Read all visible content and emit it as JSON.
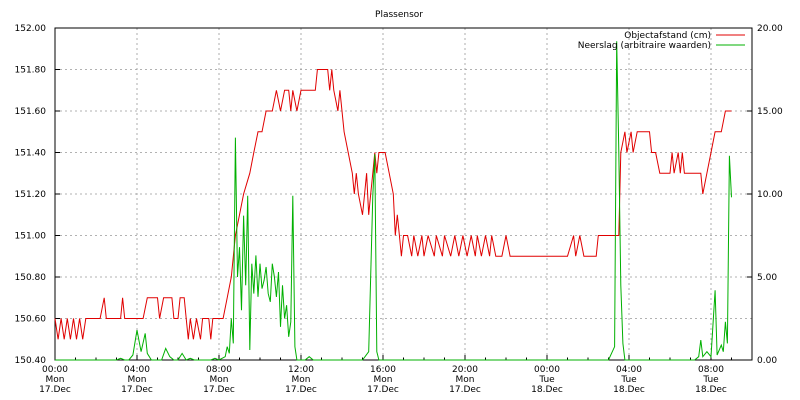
{
  "chart_data": {
    "type": "line",
    "title": "Plassensor",
    "xlabel": "",
    "ylabel": "",
    "x_unit": "hours since 17 Dec 00:00",
    "xlim": [
      0,
      34
    ],
    "ylim": [
      150.4,
      152.0
    ],
    "y2lim": [
      0,
      20
    ],
    "grid": true,
    "legend_placement": "top-right",
    "x_ticks": [
      {
        "x": 0,
        "l1": "00:00",
        "l2": "Mon",
        "l3": "17.Dec"
      },
      {
        "x": 4,
        "l1": "04:00",
        "l2": "Mon",
        "l3": "17.Dec"
      },
      {
        "x": 8,
        "l1": "08:00",
        "l2": "Mon",
        "l3": "17.Dec"
      },
      {
        "x": 12,
        "l1": "12:00",
        "l2": "Mon",
        "l3": "17.Dec"
      },
      {
        "x": 16,
        "l1": "16:00",
        "l2": "Mon",
        "l3": "17.Dec"
      },
      {
        "x": 20,
        "l1": "20:00",
        "l2": "Mon",
        "l3": "17.Dec"
      },
      {
        "x": 24,
        "l1": "00:00",
        "l2": "Tue",
        "l3": "18.Dec"
      },
      {
        "x": 28,
        "l1": "04:00",
        "l2": "Tue",
        "l3": "18.Dec"
      },
      {
        "x": 32,
        "l1": "08:00",
        "l2": "Tue",
        "l3": "18.Dec"
      }
    ],
    "y_ticks": [
      "150.40",
      "150.60",
      "150.80",
      "151.00",
      "151.20",
      "151.40",
      "151.60",
      "151.80",
      "152.00"
    ],
    "y2_ticks": [
      "0.00",
      "5.00",
      "10.00",
      "15.00",
      "20.00"
    ],
    "series": [
      {
        "name": "Objectafstand (cm)",
        "color": "#e00000",
        "axis": "left",
        "points": [
          [
            0,
            150.6
          ],
          [
            0.15,
            150.5
          ],
          [
            0.3,
            150.6
          ],
          [
            0.45,
            150.5
          ],
          [
            0.6,
            150.6
          ],
          [
            0.75,
            150.5
          ],
          [
            0.9,
            150.6
          ],
          [
            1.05,
            150.5
          ],
          [
            1.2,
            150.6
          ],
          [
            1.35,
            150.5
          ],
          [
            1.5,
            150.6
          ],
          [
            2.2,
            150.6
          ],
          [
            2.4,
            150.7
          ],
          [
            2.5,
            150.6
          ],
          [
            3.2,
            150.6
          ],
          [
            3.3,
            150.7
          ],
          [
            3.4,
            150.6
          ],
          [
            3.8,
            150.6
          ],
          [
            4.0,
            150.6
          ],
          [
            4.3,
            150.6
          ],
          [
            4.5,
            150.7
          ],
          [
            5.0,
            150.7
          ],
          [
            5.1,
            150.6
          ],
          [
            5.3,
            150.7
          ],
          [
            5.7,
            150.7
          ],
          [
            5.8,
            150.6
          ],
          [
            6.0,
            150.6
          ],
          [
            6.1,
            150.7
          ],
          [
            6.3,
            150.7
          ],
          [
            6.4,
            150.6
          ],
          [
            6.5,
            150.5
          ],
          [
            6.6,
            150.6
          ],
          [
            6.75,
            150.5
          ],
          [
            6.9,
            150.6
          ],
          [
            7.1,
            150.5
          ],
          [
            7.2,
            150.6
          ],
          [
            7.5,
            150.6
          ],
          [
            7.6,
            150.5
          ],
          [
            7.7,
            150.6
          ],
          [
            8.2,
            150.6
          ],
          [
            8.4,
            150.7
          ],
          [
            8.6,
            150.8
          ],
          [
            8.8,
            151.0
          ],
          [
            9.0,
            151.1
          ],
          [
            9.2,
            151.2
          ],
          [
            9.5,
            151.3
          ],
          [
            9.7,
            151.4
          ],
          [
            9.9,
            151.5
          ],
          [
            10.1,
            151.5
          ],
          [
            10.3,
            151.6
          ],
          [
            10.6,
            151.6
          ],
          [
            10.8,
            151.7
          ],
          [
            11.0,
            151.6
          ],
          [
            11.2,
            151.7
          ],
          [
            11.4,
            151.7
          ],
          [
            11.5,
            151.6
          ],
          [
            11.6,
            151.7
          ],
          [
            11.8,
            151.6
          ],
          [
            12.0,
            151.7
          ],
          [
            12.2,
            151.7
          ],
          [
            12.4,
            151.7
          ],
          [
            12.7,
            151.7
          ],
          [
            12.8,
            151.8
          ],
          [
            13.3,
            151.8
          ],
          [
            13.4,
            151.7
          ],
          [
            13.5,
            151.8
          ],
          [
            13.6,
            151.7
          ],
          [
            13.8,
            151.6
          ],
          [
            13.9,
            151.7
          ],
          [
            14.1,
            151.5
          ],
          [
            14.3,
            151.4
          ],
          [
            14.5,
            151.3
          ],
          [
            14.6,
            151.2
          ],
          [
            14.7,
            151.3
          ],
          [
            14.8,
            151.2
          ],
          [
            15.0,
            151.1
          ],
          [
            15.1,
            151.2
          ],
          [
            15.2,
            151.3
          ],
          [
            15.3,
            151.1
          ],
          [
            15.4,
            151.2
          ],
          [
            15.5,
            151.3
          ],
          [
            15.6,
            151.4
          ],
          [
            15.7,
            151.3
          ],
          [
            15.8,
            151.4
          ],
          [
            16.1,
            151.4
          ],
          [
            16.3,
            151.3
          ],
          [
            16.5,
            151.2
          ],
          [
            16.6,
            151.0
          ],
          [
            16.7,
            151.1
          ],
          [
            16.8,
            151.0
          ],
          [
            16.9,
            150.9
          ],
          [
            17.0,
            151.0
          ],
          [
            17.2,
            151.0
          ],
          [
            17.4,
            150.9
          ],
          [
            17.5,
            151.0
          ],
          [
            17.7,
            150.9
          ],
          [
            17.9,
            151.0
          ],
          [
            18.0,
            150.9
          ],
          [
            18.2,
            151.0
          ],
          [
            18.5,
            150.9
          ],
          [
            18.6,
            151.0
          ],
          [
            18.9,
            150.9
          ],
          [
            19.0,
            151.0
          ],
          [
            19.3,
            150.9
          ],
          [
            19.5,
            151.0
          ],
          [
            19.7,
            150.9
          ],
          [
            19.9,
            151.0
          ],
          [
            20.1,
            150.9
          ],
          [
            20.3,
            151.0
          ],
          [
            20.5,
            150.9
          ],
          [
            20.6,
            151.0
          ],
          [
            20.8,
            150.9
          ],
          [
            21.0,
            151.0
          ],
          [
            21.2,
            150.9
          ],
          [
            21.3,
            151.0
          ],
          [
            21.5,
            150.9
          ],
          [
            21.8,
            150.9
          ],
          [
            22.0,
            151.0
          ],
          [
            22.2,
            150.9
          ],
          [
            22.4,
            150.9
          ],
          [
            23.0,
            150.9
          ],
          [
            23.7,
            150.9
          ],
          [
            24.3,
            150.9
          ],
          [
            25.0,
            150.9
          ],
          [
            25.3,
            151.0
          ],
          [
            25.4,
            150.9
          ],
          [
            25.6,
            151.0
          ],
          [
            25.8,
            150.9
          ],
          [
            26.4,
            150.9
          ],
          [
            26.5,
            151.0
          ],
          [
            27.5,
            151.0
          ],
          [
            27.6,
            151.4
          ],
          [
            27.8,
            151.5
          ],
          [
            27.9,
            151.4
          ],
          [
            28.1,
            151.5
          ],
          [
            28.2,
            151.4
          ],
          [
            28.4,
            151.5
          ],
          [
            29.0,
            151.5
          ],
          [
            29.1,
            151.4
          ],
          [
            29.3,
            151.4
          ],
          [
            29.5,
            151.3
          ],
          [
            30.0,
            151.3
          ],
          [
            30.1,
            151.4
          ],
          [
            30.2,
            151.3
          ],
          [
            30.4,
            151.4
          ],
          [
            30.5,
            151.3
          ],
          [
            30.6,
            151.4
          ],
          [
            30.7,
            151.3
          ],
          [
            31.0,
            151.3
          ],
          [
            31.5,
            151.3
          ],
          [
            31.6,
            151.2
          ],
          [
            31.8,
            151.3
          ],
          [
            32.0,
            151.4
          ],
          [
            32.2,
            151.5
          ],
          [
            32.5,
            151.5
          ],
          [
            32.7,
            151.6
          ],
          [
            33.0,
            151.6
          ]
        ]
      },
      {
        "name": "Neerslag (arbitraire waarden)",
        "color": "#00b000",
        "axis": "right",
        "points": [
          [
            0,
            0
          ],
          [
            3.0,
            0
          ],
          [
            3.2,
            0.1
          ],
          [
            3.4,
            0
          ],
          [
            3.6,
            0
          ],
          [
            3.8,
            0.3
          ],
          [
            4.0,
            1.8
          ],
          [
            4.2,
            0.5
          ],
          [
            4.4,
            1.6
          ],
          [
            4.5,
            0.4
          ],
          [
            4.7,
            0
          ],
          [
            5.2,
            0
          ],
          [
            5.4,
            0.7
          ],
          [
            5.6,
            0.2
          ],
          [
            5.8,
            0
          ],
          [
            6.0,
            0
          ],
          [
            6.2,
            0.4
          ],
          [
            6.4,
            0
          ],
          [
            6.6,
            0.1
          ],
          [
            6.8,
            0
          ],
          [
            7.6,
            0
          ],
          [
            7.8,
            0.1
          ],
          [
            8.0,
            0
          ],
          [
            8.3,
            0.2
          ],
          [
            8.4,
            0.8
          ],
          [
            8.5,
            0.4
          ],
          [
            8.6,
            2.5
          ],
          [
            8.7,
            1.0
          ],
          [
            8.8,
            13.4
          ],
          [
            8.9,
            5.0
          ],
          [
            9.0,
            6.8
          ],
          [
            9.1,
            3.0
          ],
          [
            9.2,
            8.7
          ],
          [
            9.3,
            4.5
          ],
          [
            9.4,
            9.9
          ],
          [
            9.5,
            0.6
          ],
          [
            9.6,
            5.8
          ],
          [
            9.7,
            4.0
          ],
          [
            9.8,
            6.3
          ],
          [
            9.9,
            3.8
          ],
          [
            10.0,
            5.8
          ],
          [
            10.1,
            4.3
          ],
          [
            10.2,
            4.8
          ],
          [
            10.3,
            5.6
          ],
          [
            10.4,
            4.0
          ],
          [
            10.5,
            3.5
          ],
          [
            10.6,
            5.8
          ],
          [
            10.7,
            5.0
          ],
          [
            10.8,
            3.8
          ],
          [
            10.9,
            5.3
          ],
          [
            11.0,
            2.0
          ],
          [
            11.1,
            4.5
          ],
          [
            11.2,
            2.5
          ],
          [
            11.3,
            3.3
          ],
          [
            11.4,
            1.4
          ],
          [
            11.5,
            2.3
          ],
          [
            11.6,
            9.9
          ],
          [
            11.7,
            0.8
          ],
          [
            11.8,
            0
          ],
          [
            12.2,
            0
          ],
          [
            12.4,
            0.2
          ],
          [
            12.6,
            0
          ],
          [
            15.0,
            0
          ],
          [
            15.3,
            0.5
          ],
          [
            15.5,
            9.9
          ],
          [
            15.6,
            12.4
          ],
          [
            15.7,
            0.5
          ],
          [
            15.8,
            0
          ],
          [
            16.0,
            0
          ],
          [
            26.5,
            0
          ],
          [
            26.8,
            0
          ],
          [
            27.0,
            0
          ],
          [
            27.3,
            0.8
          ],
          [
            27.4,
            19.2
          ],
          [
            27.5,
            12.6
          ],
          [
            27.6,
            4.5
          ],
          [
            27.7,
            1.0
          ],
          [
            27.8,
            0
          ],
          [
            29.0,
            0
          ],
          [
            31.2,
            0
          ],
          [
            31.4,
            0.2
          ],
          [
            31.5,
            1.2
          ],
          [
            31.6,
            0.2
          ],
          [
            31.8,
            0.5
          ],
          [
            32.0,
            0.2
          ],
          [
            32.2,
            4.2
          ],
          [
            32.3,
            0.3
          ],
          [
            32.5,
            0.9
          ],
          [
            32.6,
            0.5
          ],
          [
            32.7,
            2.3
          ],
          [
            32.8,
            1.0
          ],
          [
            32.9,
            12.3
          ],
          [
            33.0,
            9.8
          ]
        ]
      }
    ]
  }
}
